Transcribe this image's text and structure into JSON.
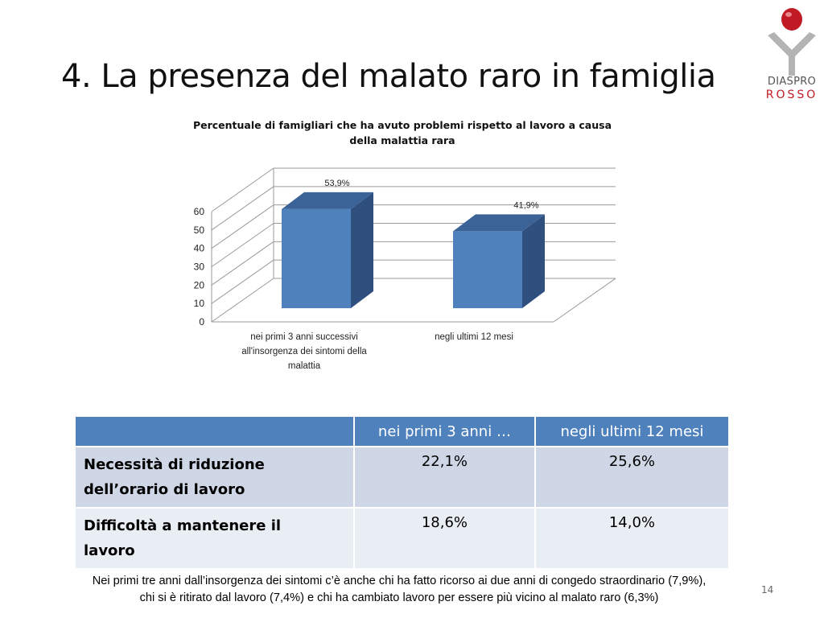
{
  "slide": {
    "title": "4. La presenza del malato raro in famiglia",
    "page_number": "14",
    "logo": {
      "line1": "DIASPRO",
      "line2": "ROSSO",
      "accent": "#c11a25",
      "figure": "#b3b3b3"
    }
  },
  "chart_data": {
    "type": "bar",
    "style": "3d-clustered-column",
    "title_lines": [
      "Percentuale di famigliari che ha avuto problemi rispetto al lavoro a causa",
      "della malattia rara"
    ],
    "categories": [
      [
        "nei primi 3 anni successivi",
        "all'insorgenza dei sintomi della",
        "malattia"
      ],
      [
        "negli ultimi 12 mesi"
      ]
    ],
    "values": [
      53.9,
      41.9
    ],
    "data_labels": [
      "53,9%",
      "41,9%"
    ],
    "ylim": [
      0,
      60
    ],
    "yticks": [
      0,
      10,
      20,
      30,
      40,
      50,
      60
    ],
    "grid": true,
    "legend": "none",
    "colors": {
      "front": "#4f81bd",
      "side": "#2f4f7e",
      "top": "#3b6397"
    }
  },
  "table": {
    "header": [
      "",
      "nei primi 3 anni …",
      "negli ultimi 12 mesi"
    ],
    "rows": [
      {
        "label_lines": [
          "Necessità di riduzione",
          "dell’orario di lavoro"
        ],
        "values": [
          "22,1%",
          "25,6%"
        ]
      },
      {
        "label_lines": [
          "Difficoltà a mantenere il",
          "lavoro"
        ],
        "values": [
          "18,6%",
          "14,0%"
        ]
      }
    ]
  },
  "footnote": {
    "line1": "Nei primi tre anni dall’insorgenza dei sintomi c’è anche chi ha fatto ricorso ai due anni di congedo straordinario (7,9%),",
    "line2": "chi si è ritirato dal lavoro (7,4%) e chi ha cambiato lavoro per essere più vicino al malato raro (6,3%)"
  }
}
